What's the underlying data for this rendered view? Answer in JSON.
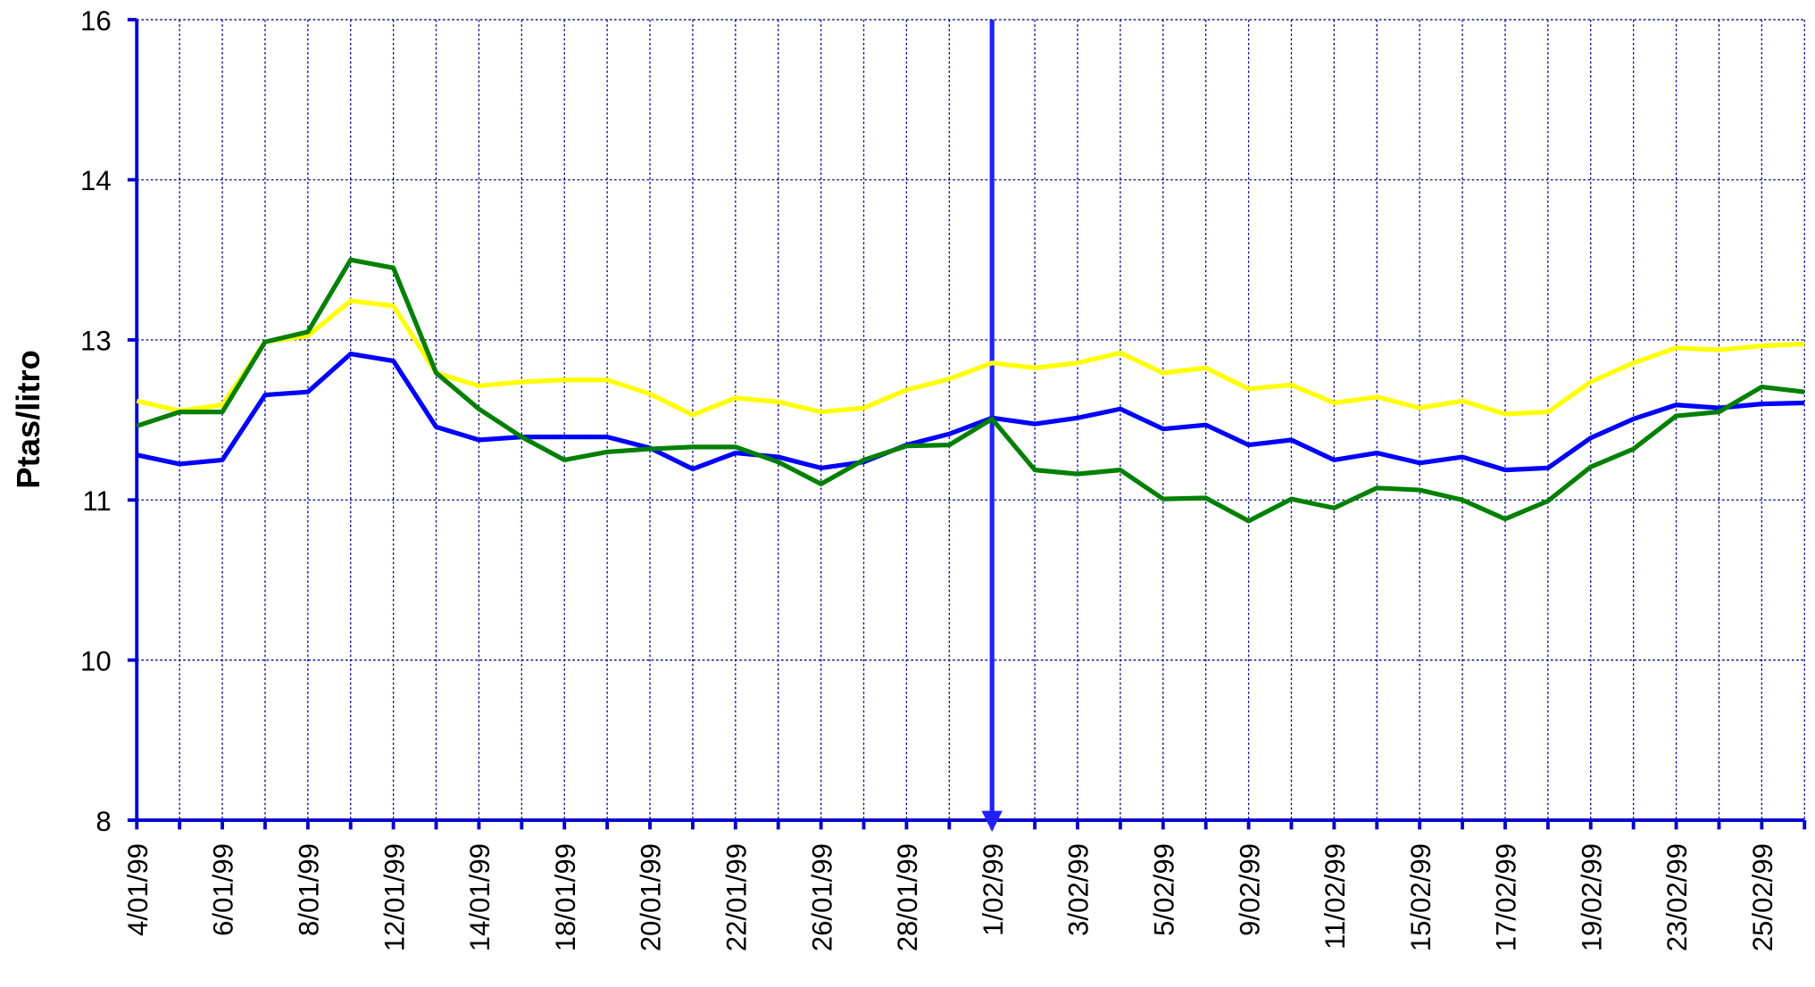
{
  "chart_data": {
    "type": "line",
    "y_label": "Ptas/litro",
    "categories": [
      "4/01/99",
      null,
      "6/01/99",
      null,
      "8/01/99",
      null,
      "12/01/99",
      null,
      "14/01/99",
      null,
      "18/01/99",
      null,
      "20/01/99",
      null,
      "22/01/99",
      null,
      "26/01/99",
      null,
      "28/01/99",
      null,
      "1/02/99",
      null,
      "3/02/99",
      null,
      "5/02/99",
      null,
      "9/02/99",
      null,
      "11/02/99",
      null,
      "15/02/99",
      null,
      "17/02/99",
      null,
      "19/02/99",
      null,
      "23/02/99",
      null,
      "25/02/99",
      null
    ],
    "series": [
      {
        "color": "#ffff00",
        "values": [
          12.19,
          12.09,
          12.15,
          12.78,
          12.84,
          13.19,
          13.14,
          12.47,
          12.34,
          12.38,
          12.4,
          12.4,
          12.26,
          12.05,
          12.22,
          12.18,
          12.08,
          12.12,
          12.3,
          12.41,
          12.57,
          12.52,
          12.57,
          12.67,
          12.47,
          12.52,
          12.31,
          12.35,
          12.17,
          12.23,
          12.12,
          12.19,
          12.06,
          12.08,
          12.38,
          12.57,
          12.72,
          12.7,
          12.74,
          12.76
        ]
      },
      {
        "color": "#0000ff",
        "values": [
          11.65,
          11.56,
          11.6,
          12.25,
          12.28,
          12.66,
          12.59,
          11.93,
          11.8,
          11.83,
          11.83,
          11.83,
          11.72,
          11.51,
          11.67,
          11.63,
          11.52,
          11.58,
          11.75,
          11.86,
          12.02,
          11.96,
          12.02,
          12.11,
          11.91,
          11.95,
          11.75,
          11.8,
          11.6,
          11.67,
          11.57,
          11.63,
          11.5,
          11.52,
          11.82,
          12.01,
          12.15,
          12.12,
          12.16,
          12.17
        ]
      },
      {
        "color": "#008000",
        "values": [
          11.94,
          12.08,
          12.08,
          12.78,
          12.88,
          13.6,
          13.52,
          12.47,
          12.11,
          11.83,
          11.6,
          11.68,
          11.71,
          11.73,
          11.73,
          11.58,
          11.36,
          11.6,
          11.74,
          11.75,
          12.01,
          11.5,
          11.46,
          11.5,
          11.21,
          11.22,
          10.99,
          11.21,
          11.12,
          11.32,
          11.3,
          11.2,
          11.01,
          11.19,
          11.53,
          11.71,
          12.04,
          12.08,
          12.33,
          12.28
        ]
      }
    ],
    "ylim": [
      8,
      16
    ],
    "yticks": [
      8,
      {
        "value": 9.6,
        "label": "10"
      },
      {
        "value": 11.2,
        "label": "11"
      },
      {
        "value": 12.8,
        "label": "13"
      },
      {
        "value": 14.4,
        "label": "14"
      },
      16
    ],
    "grid": true
  }
}
